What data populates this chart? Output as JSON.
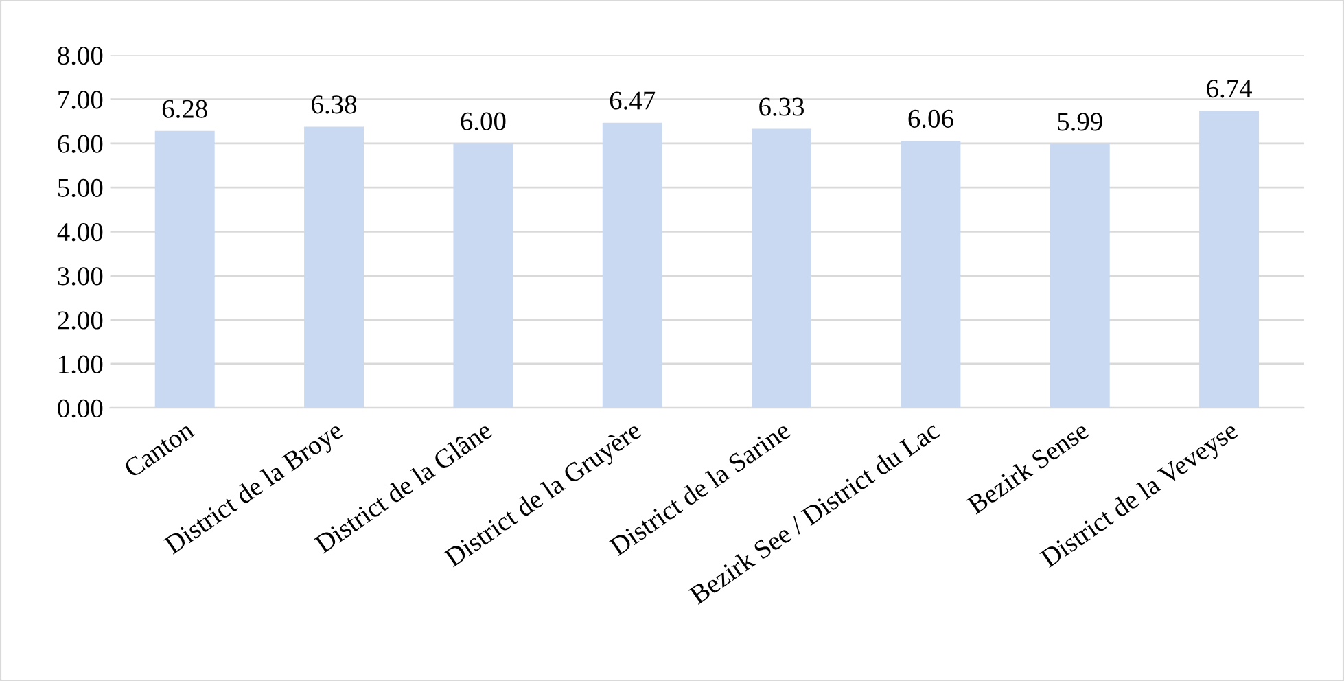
{
  "chart_data": {
    "type": "bar",
    "categories": [
      "Canton",
      "District de la Broye",
      "District de la Glâne",
      "District de la Gruyère",
      "District de la Sarine",
      "Bezirk See / District du Lac",
      "Bezirk Sense",
      "District de la Veveyse"
    ],
    "values": [
      6.28,
      6.38,
      6.0,
      6.47,
      6.33,
      6.06,
      5.99,
      6.74
    ],
    "value_labels": [
      "6.28",
      "6.38",
      "6.00",
      "6.47",
      "6.33",
      "6.06",
      "5.99",
      "6.74"
    ],
    "color": "#c9d9f1",
    "ylim": [
      0,
      8
    ],
    "yticks": [
      {
        "value": 0,
        "label": "0.00"
      },
      {
        "value": 1,
        "label": "1.00"
      },
      {
        "value": 2,
        "label": "2.00"
      },
      {
        "value": 3,
        "label": "3.00"
      },
      {
        "value": 4,
        "label": "4.00"
      },
      {
        "value": 5,
        "label": "5.00"
      },
      {
        "value": 6,
        "label": "6.00"
      },
      {
        "value": 7,
        "label": "7.00"
      },
      {
        "value": 8,
        "label": "8.00"
      }
    ],
    "grid": "y",
    "legend": false
  }
}
